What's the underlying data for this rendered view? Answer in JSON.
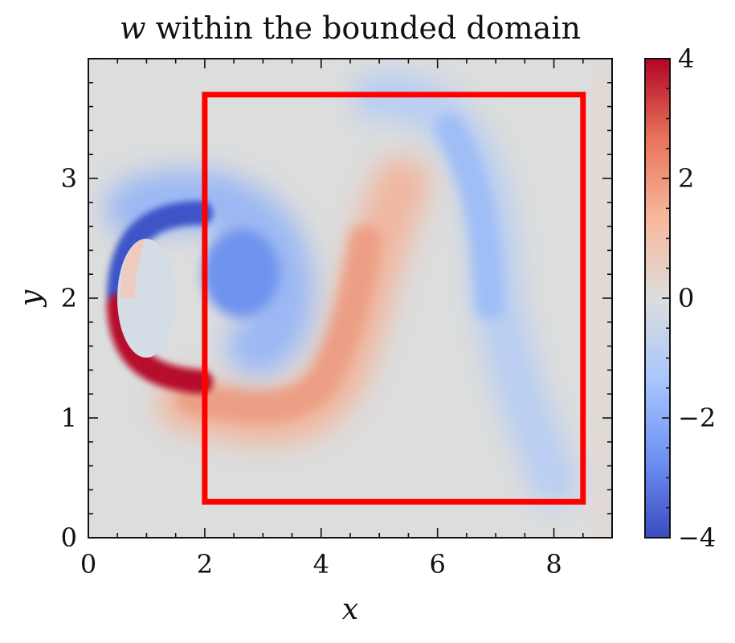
{
  "chart_data": {
    "type": "heatmap",
    "title_var": "w",
    "title_rest": " within the bounded domain",
    "xlabel": "x",
    "ylabel": "y",
    "xlim": [
      0,
      9
    ],
    "ylim": [
      0,
      4
    ],
    "xticks": [
      0,
      2,
      4,
      6,
      8
    ],
    "yticks": [
      0,
      1,
      2,
      3
    ],
    "x_tick_labels": [
      "0",
      "2",
      "4",
      "6",
      "8"
    ],
    "y_tick_labels": [
      "0",
      "1",
      "2",
      "3"
    ],
    "colormap": "coolwarm",
    "colorbar": {
      "vmin": -4,
      "vmax": 4,
      "ticks": [
        -4,
        -2,
        0,
        2,
        4
      ],
      "tick_labels": [
        "−4",
        "−2",
        "0",
        "2",
        "4"
      ],
      "colors": [
        "#3b4cc0",
        "#6f92f3",
        "#aac7fd",
        "#dddddd",
        "#f7b89c",
        "#e7745b",
        "#b40426"
      ]
    },
    "obstacle": {
      "shape": "ellipse",
      "center": [
        1.0,
        2.0
      ],
      "semi_axes": [
        0.5,
        0.5
      ]
    },
    "bounded_domain": {
      "x": [
        2.0,
        8.5
      ],
      "y": [
        0.3,
        3.7
      ],
      "color": "#ff0000"
    },
    "field_features": [
      {
        "name": "negative shear layer (top of cylinder)",
        "x": 1.3,
        "y": 2.65,
        "value": -4
      },
      {
        "name": "positive shear layer (bottom of cylinder)",
        "x": 1.3,
        "y": 1.35,
        "value": 4
      },
      {
        "name": "negative vortex",
        "x": 2.8,
        "y": 2.15,
        "value": -2.5
      },
      {
        "name": "positive vortex",
        "x": 4.5,
        "y": 1.9,
        "value": 1.7
      },
      {
        "name": "weak negative vortex",
        "x": 6.6,
        "y": 2.4,
        "value": -1.3
      }
    ]
  }
}
